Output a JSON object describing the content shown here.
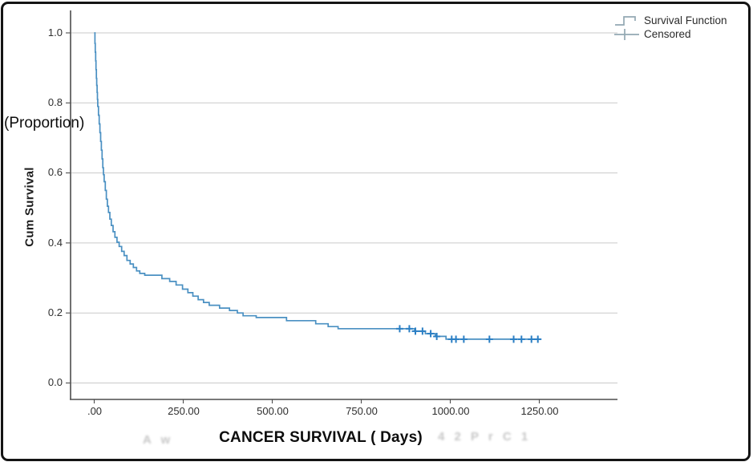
{
  "chart_data": {
    "type": "line",
    "subtype": "kaplan-meier-step",
    "title": "",
    "xlabel": "CANCER SURVIVAL ( Days)",
    "ylabel": "Cum Survival",
    "ylabel_annotation": "(Proportion)",
    "xlim": [
      0,
      1250
    ],
    "ylim": [
      0.0,
      1.0
    ],
    "grid": "horizontal",
    "xticks": {
      "values": [
        0,
        250,
        500,
        750,
        1000,
        1250
      ],
      "labels": [
        ".00",
        "250.00",
        "500.00",
        "750.00",
        "1000.00",
        "1250.00"
      ]
    },
    "yticks": {
      "values": [
        0.0,
        0.2,
        0.4,
        0.6,
        0.8,
        1.0
      ],
      "labels": [
        "0.0",
        "0.2",
        "0.4",
        "0.6",
        "0.8",
        "1.0"
      ]
    },
    "legend": {
      "position": "top-right",
      "entries": [
        {
          "label": "Survival Function",
          "marker": "step-line"
        },
        {
          "label": "Censored",
          "marker": "plus"
        }
      ]
    },
    "series": [
      {
        "name": "Survival Function",
        "type": "step",
        "color": "#4a90c2",
        "points": [
          [
            0,
            1.0
          ],
          [
            2,
            0.97
          ],
          [
            3,
            0.945
          ],
          [
            4,
            0.92
          ],
          [
            5,
            0.895
          ],
          [
            6,
            0.87
          ],
          [
            7,
            0.85
          ],
          [
            8,
            0.83
          ],
          [
            9,
            0.81
          ],
          [
            10,
            0.79
          ],
          [
            12,
            0.765
          ],
          [
            14,
            0.74
          ],
          [
            16,
            0.715
          ],
          [
            18,
            0.69
          ],
          [
            20,
            0.665
          ],
          [
            22,
            0.64
          ],
          [
            24,
            0.615
          ],
          [
            26,
            0.595
          ],
          [
            28,
            0.575
          ],
          [
            31,
            0.55
          ],
          [
            34,
            0.525
          ],
          [
            37,
            0.505
          ],
          [
            40,
            0.487
          ],
          [
            44,
            0.468
          ],
          [
            48,
            0.45
          ],
          [
            53,
            0.432
          ],
          [
            58,
            0.416
          ],
          [
            64,
            0.402
          ],
          [
            70,
            0.39
          ],
          [
            77,
            0.376
          ],
          [
            84,
            0.364
          ],
          [
            92,
            0.35
          ],
          [
            101,
            0.34
          ],
          [
            110,
            0.33
          ],
          [
            119,
            0.32
          ],
          [
            128,
            0.313
          ],
          [
            142,
            0.308
          ],
          [
            190,
            0.298
          ],
          [
            212,
            0.29
          ],
          [
            230,
            0.28
          ],
          [
            248,
            0.268
          ],
          [
            263,
            0.258
          ],
          [
            277,
            0.248
          ],
          [
            292,
            0.238
          ],
          [
            307,
            0.23
          ],
          [
            323,
            0.222
          ],
          [
            352,
            0.214
          ],
          [
            380,
            0.207
          ],
          [
            402,
            0.2
          ],
          [
            418,
            0.192
          ],
          [
            455,
            0.187
          ],
          [
            540,
            0.178
          ],
          [
            622,
            0.169
          ],
          [
            657,
            0.161
          ],
          [
            685,
            0.155
          ],
          [
            900,
            0.148
          ],
          [
            930,
            0.141
          ],
          [
            958,
            0.133
          ],
          [
            988,
            0.125
          ],
          [
            1252,
            0.125
          ]
        ]
      }
    ],
    "censored": {
      "name": "Censored",
      "marker": "plus",
      "color": "#2b7fc4",
      "points": [
        [
          858,
          0.155
        ],
        [
          885,
          0.155
        ],
        [
          902,
          0.148
        ],
        [
          922,
          0.148
        ],
        [
          945,
          0.141
        ],
        [
          962,
          0.133
        ],
        [
          1004,
          0.125
        ],
        [
          1016,
          0.125
        ],
        [
          1038,
          0.125
        ],
        [
          1110,
          0.125
        ],
        [
          1178,
          0.125
        ],
        [
          1200,
          0.125
        ],
        [
          1228,
          0.125
        ],
        [
          1246,
          0.125
        ]
      ]
    }
  },
  "watermark": {
    "left_fragment": "A w",
    "right_fragment": "4 2 P r C 1"
  },
  "colors": {
    "curve": "#4a90c2",
    "censored": "#2b7fc4",
    "gridline": "#c9c9c9",
    "axis": "#4d4d4d",
    "legend_icon": "#93a8b3",
    "frame": "#141414"
  }
}
